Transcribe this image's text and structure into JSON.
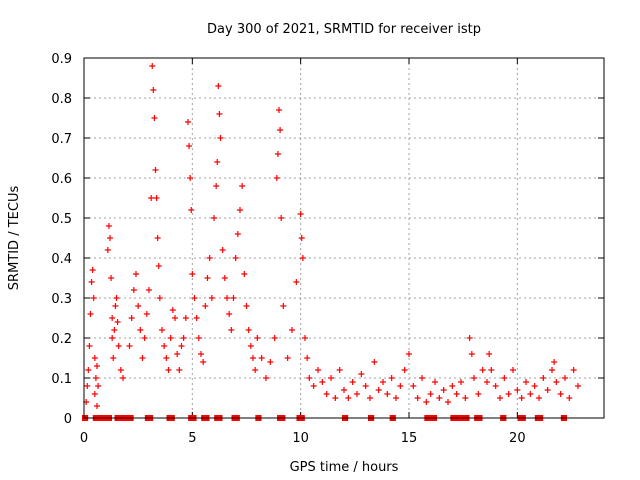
{
  "chart_data": {
    "type": "scatter",
    "title": "Day 300 of 2021, SRMTID for receiver istp",
    "xlabel": "GPS time / hours",
    "ylabel": "SRMTID / TECUs",
    "xlim": [
      0,
      24
    ],
    "ylim": [
      0,
      0.9
    ],
    "xticks": [
      0,
      5,
      10,
      15,
      20
    ],
    "yticks": [
      0,
      0.1,
      0.2,
      0.3,
      0.4,
      0.5,
      0.6,
      0.7,
      0.8,
      0.9
    ],
    "xtick_labels": [
      "0",
      "5",
      "10",
      "15",
      "20"
    ],
    "ytick_labels": [
      "0",
      "0.1",
      "0.2",
      "0.3",
      "0.4",
      "0.5",
      "0.6",
      "0.7",
      "0.8",
      "0.9"
    ],
    "grid": true,
    "marker": "+",
    "color": "#ff0000",
    "series": [
      {
        "name": "SRMTID",
        "x": [
          0.1,
          0.15,
          0.2,
          0.25,
          0.3,
          0.35,
          0.4,
          0.45,
          0.5,
          0.5,
          0.55,
          0.6,
          0.6,
          0.65,
          1.1,
          1.15,
          1.2,
          1.25,
          1.3,
          1.3,
          1.35,
          1.4,
          1.45,
          1.5,
          1.55,
          1.6,
          1.7,
          1.8,
          2.1,
          2.2,
          2.3,
          2.4,
          2.5,
          2.6,
          2.7,
          2.8,
          2.9,
          3.0,
          3.1,
          3.15,
          3.2,
          3.25,
          3.3,
          3.35,
          3.4,
          3.45,
          3.5,
          3.6,
          3.7,
          3.8,
          3.9,
          4.0,
          4.1,
          4.2,
          4.3,
          4.4,
          4.5,
          4.6,
          4.7,
          4.8,
          4.85,
          4.9,
          4.95,
          5.0,
          5.1,
          5.2,
          5.3,
          5.4,
          5.5,
          5.6,
          5.7,
          5.8,
          5.9,
          6.0,
          6.1,
          6.15,
          6.2,
          6.25,
          6.3,
          6.4,
          6.5,
          6.6,
          6.7,
          6.8,
          6.9,
          7.0,
          7.1,
          7.2,
          7.3,
          7.4,
          7.5,
          7.6,
          7.7,
          7.8,
          7.9,
          8.0,
          8.2,
          8.4,
          8.6,
          8.8,
          8.9,
          8.95,
          9.0,
          9.05,
          9.1,
          9.2,
          9.4,
          9.6,
          9.8,
          10.0,
          10.05,
          10.1,
          10.2,
          10.3,
          10.4,
          10.6,
          10.8,
          11.0,
          11.2,
          11.4,
          11.6,
          11.8,
          12.0,
          12.2,
          12.4,
          12.6,
          12.8,
          13.0,
          13.2,
          13.4,
          13.6,
          13.8,
          14.0,
          14.2,
          14.4,
          14.6,
          14.8,
          15.0,
          15.2,
          15.4,
          15.6,
          15.8,
          16.0,
          16.2,
          16.4,
          16.6,
          16.8,
          17.0,
          17.2,
          17.4,
          17.6,
          17.8,
          17.9,
          18.0,
          18.2,
          18.4,
          18.6,
          18.7,
          18.8,
          19.0,
          19.2,
          19.4,
          19.6,
          19.8,
          20.0,
          20.2,
          20.4,
          20.6,
          20.8,
          21.0,
          21.2,
          21.4,
          21.6,
          21.7,
          21.8,
          22.0,
          22.2,
          22.4,
          22.6,
          22.8
        ],
        "y": [
          0.04,
          0.08,
          0.12,
          0.18,
          0.26,
          0.34,
          0.37,
          0.3,
          0.15,
          0.06,
          0.1,
          0.13,
          0.03,
          0.08,
          0.42,
          0.48,
          0.45,
          0.35,
          0.25,
          0.2,
          0.15,
          0.22,
          0.28,
          0.3,
          0.24,
          0.18,
          0.12,
          0.1,
          0.18,
          0.25,
          0.32,
          0.36,
          0.28,
          0.22,
          0.15,
          0.2,
          0.26,
          0.32,
          0.55,
          0.88,
          0.82,
          0.75,
          0.62,
          0.55,
          0.45,
          0.38,
          0.3,
          0.22,
          0.18,
          0.15,
          0.12,
          0.2,
          0.27,
          0.25,
          0.16,
          0.12,
          0.18,
          0.2,
          0.25,
          0.74,
          0.68,
          0.6,
          0.52,
          0.36,
          0.3,
          0.25,
          0.2,
          0.16,
          0.14,
          0.28,
          0.35,
          0.4,
          0.3,
          0.5,
          0.58,
          0.64,
          0.83,
          0.76,
          0.7,
          0.42,
          0.35,
          0.3,
          0.26,
          0.22,
          0.3,
          0.4,
          0.46,
          0.52,
          0.58,
          0.36,
          0.28,
          0.22,
          0.18,
          0.15,
          0.12,
          0.2,
          0.15,
          0.1,
          0.14,
          0.2,
          0.6,
          0.66,
          0.77,
          0.72,
          0.5,
          0.28,
          0.15,
          0.22,
          0.34,
          0.51,
          0.45,
          0.4,
          0.2,
          0.15,
          0.1,
          0.08,
          0.12,
          0.09,
          0.06,
          0.1,
          0.05,
          0.12,
          0.07,
          0.05,
          0.09,
          0.06,
          0.11,
          0.08,
          0.05,
          0.14,
          0.07,
          0.09,
          0.06,
          0.1,
          0.05,
          0.08,
          0.12,
          0.16,
          0.08,
          0.05,
          0.1,
          0.04,
          0.06,
          0.09,
          0.05,
          0.07,
          0.04,
          0.08,
          0.06,
          0.09,
          0.05,
          0.2,
          0.16,
          0.1,
          0.06,
          0.12,
          0.09,
          0.16,
          0.12,
          0.08,
          0.05,
          0.1,
          0.06,
          0.12,
          0.07,
          0.05,
          0.09,
          0.06,
          0.08,
          0.05,
          0.1,
          0.07,
          0.12,
          0.14,
          0.09,
          0.06,
          0.1,
          0.05,
          0.12,
          0.08
        ]
      }
    ],
    "baseline_segments": [
      [
        0,
        0.1
      ],
      [
        0.5,
        1.2
      ],
      [
        1.5,
        2.2
      ],
      [
        2.9,
        3.1
      ],
      [
        3.9,
        4.1
      ],
      [
        4.9,
        5.1
      ],
      [
        5.5,
        5.7
      ],
      [
        6.1,
        6.3
      ],
      [
        6.9,
        7.1
      ],
      [
        8.0,
        8.1
      ],
      [
        9.0,
        9.2
      ],
      [
        9.9,
        10.1
      ],
      [
        12.0,
        12.1
      ],
      [
        13.2,
        13.3
      ],
      [
        14.2,
        14.3
      ],
      [
        15.8,
        16.2
      ],
      [
        17.0,
        17.7
      ],
      [
        18.1,
        18.3
      ],
      [
        19.3,
        19.4
      ],
      [
        20.1,
        20.3
      ],
      [
        20.9,
        21.1
      ],
      [
        22.1,
        22.2
      ]
    ]
  }
}
